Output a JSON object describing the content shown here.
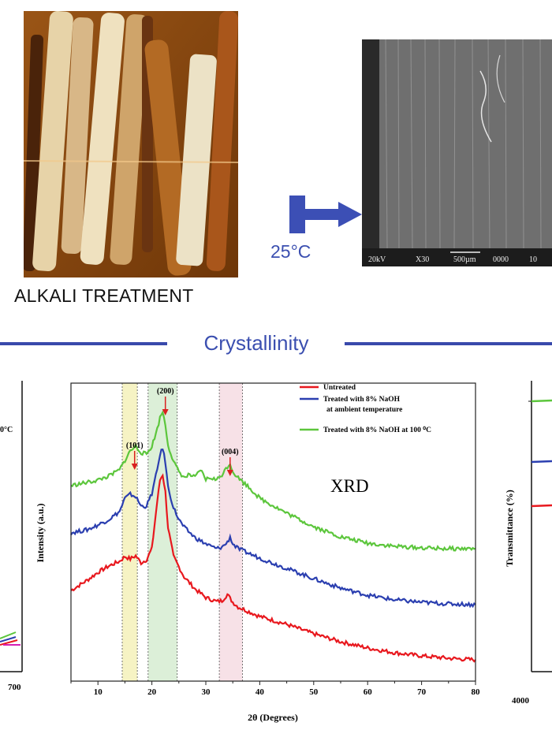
{
  "top_section": {
    "process_label": "ALKALI TREATMENT",
    "temperature_label": "25°C",
    "sem_scale_text": [
      "20kV",
      "X30",
      "500µm",
      "0000",
      "10"
    ]
  },
  "section_title": "Crystallinity",
  "left_panel": {
    "x_tick_visible": "700",
    "legend_fragment": "0°C"
  },
  "right_panel": {
    "ylabel": "Transmittance (%)",
    "x_tick_visible": "4000"
  },
  "colors": {
    "untreated": "#e8181e",
    "ambient": "#2b3fb0",
    "hot": "#5cc63c",
    "accent": "#3b4fb0"
  },
  "chart_data": {
    "type": "line",
    "title": "XRD",
    "xlabel": "2θ (Degrees)",
    "ylabel": "Intensity (a.u.)",
    "xlim": [
      5,
      80
    ],
    "x_ticks": [
      10,
      20,
      30,
      40,
      50,
      60,
      70,
      80
    ],
    "regions": [
      {
        "label": "(101)",
        "x_range": [
          14.5,
          17.3
        ],
        "peak": 16.8,
        "color": "#f6f3c4"
      },
      {
        "label": "(200)",
        "x_range": [
          19.3,
          24.7
        ],
        "peak": 22.5,
        "color": "#dcefd8"
      },
      {
        "label": "(004)",
        "x_range": [
          32.5,
          36.8
        ],
        "peak": 34.5,
        "color": "#f7e1e7"
      }
    ],
    "legend": [
      {
        "name": "Untreated"
      },
      {
        "name": "Treated with 8% NaOH",
        "name_line2": "at ambient temperature"
      },
      {
        "name": "Treated with 8% NaOH at 100 ⁰C"
      }
    ],
    "series": [
      {
        "name": "Untreated",
        "x": [
          5,
          8,
          10,
          12,
          14,
          15,
          16,
          17,
          18,
          19,
          20,
          21,
          21.5,
          22,
          22.5,
          23,
          24,
          25,
          26,
          28,
          30,
          32,
          33,
          33.5,
          34,
          34.5,
          35,
          36,
          38,
          40,
          45,
          50,
          55,
          60,
          65,
          70,
          75,
          80
        ],
        "y": [
          115,
          128,
          138,
          146,
          152,
          158,
          155,
          159,
          150,
          154,
          168,
          228,
          255,
          262,
          240,
          195,
          158,
          145,
          132,
          117,
          106,
          101,
          102,
          106,
          110,
          105,
          100,
          94,
          88,
          82,
          72,
          60,
          50,
          42,
          36,
          32,
          29,
          27
        ]
      },
      {
        "name": "Treated with 8% NaOH at ambient temperature",
        "x": [
          5,
          8,
          10,
          12,
          14,
          15,
          16,
          17,
          18,
          19,
          20,
          21,
          21.5,
          22,
          22.5,
          23,
          24,
          25,
          26,
          28,
          30,
          32,
          33,
          34,
          34.5,
          35,
          36,
          38,
          40,
          45,
          50,
          55,
          60,
          65,
          70,
          75,
          80
        ],
        "y": [
          188,
          192,
          198,
          205,
          215,
          232,
          237,
          234,
          222,
          222,
          238,
          268,
          288,
          295,
          278,
          246,
          220,
          205,
          195,
          182,
          174,
          168,
          170,
          176,
          183,
          174,
          168,
          162,
          156,
          143,
          130,
          118,
          109,
          103,
          100,
          98,
          97
        ]
      },
      {
        "name": "Treated with 8% NaOH at 100 ⁰C",
        "x": [
          5,
          8,
          10,
          12,
          14,
          15,
          16,
          17,
          18,
          19,
          20,
          21,
          21.5,
          22,
          22.5,
          23,
          24,
          25,
          26,
          27,
          28,
          29,
          30,
          31,
          32,
          33,
          34,
          34.5,
          35,
          36,
          38,
          40,
          45,
          50,
          55,
          60,
          65,
          70,
          75,
          80
        ],
        "y": [
          248,
          252,
          255,
          260,
          268,
          280,
          292,
          298,
          290,
          288,
          298,
          320,
          334,
          342,
          325,
          300,
          278,
          266,
          258,
          262,
          258,
          268,
          256,
          258,
          255,
          262,
          272,
          276,
          266,
          258,
          246,
          232,
          213,
          196,
          183,
          175,
          171,
          169,
          168,
          168
        ]
      }
    ]
  }
}
